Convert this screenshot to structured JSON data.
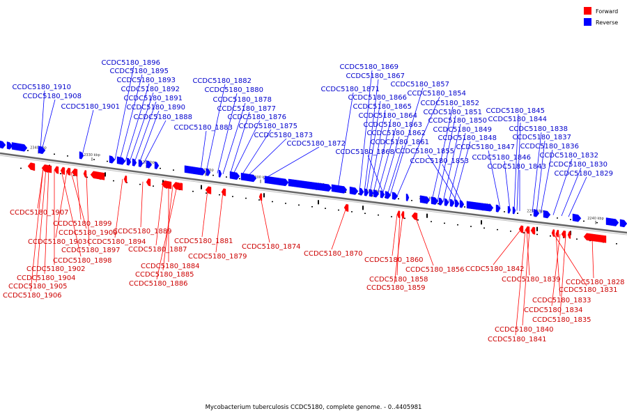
{
  "caption": "Mycobacterium tuberculosis CCDC5180, complete genome. - 0..4405981",
  "legend": [
    {
      "label": "Forward",
      "color": "#ff0000"
    },
    {
      "label": "Reverse",
      "color": "#0000ff"
    }
  ],
  "colors": {
    "forward": "#ff0000",
    "reverse": "#0000ff",
    "forward_label": "#cc0000",
    "reverse_label": "#0000cc",
    "backbone": "#666666"
  },
  "ticks": [
    "2340 kbp",
    "2330 kbp",
    "2320 kbp",
    "2310 kbp",
    "2300 kbp",
    "2290 kbp",
    "2280 kbp",
    "2270 kbp",
    "2260 kbp",
    "2250 kbp",
    "2240 kbp"
  ],
  "reverse_labels": [
    "CCDC5180_1910",
    "CCDC5180_1908",
    "CCDC5180_1901",
    "CCDC5180_1896",
    "CCDC5180_1895",
    "CCDC5180_1893",
    "CCDC5180_1892",
    "CCDC5180_1891",
    "CCDC5180_1890",
    "CCDC5180_1888",
    "CCDC5180_1883",
    "CCDC5180_1882",
    "CCDC5180_1880",
    "CCDC5180_1878",
    "CCDC5180_1877",
    "CCDC5180_1876",
    "CCDC5180_1875",
    "CCDC5180_1873",
    "CCDC5180_1872",
    "CCDC5180_1871",
    "CCDC5180_1869",
    "CCDC5180_1867",
    "CCDC5180_1866",
    "CCDC5180_1865",
    "CCDC5180_1864",
    "CCDC5180_1863",
    "CCDC5180_1862",
    "CCDC5180_1861",
    "CCDC5180_1868",
    "CCDC5180_1857",
    "CCDC5180_1854",
    "CCDC5180_1852",
    "CCDC5180_1851",
    "CCDC5180_1850",
    "CCDC5180_1849",
    "CCDC5180_1848",
    "CCDC5180_1855",
    "CCDC5180_1853",
    "CCDC5180_1847",
    "CCDC5180_1846",
    "CCDC5180_1845",
    "CCDC5180_1844",
    "CCDC5180_1843",
    "CCDC5180_1838",
    "CCDC5180_1837",
    "CCDC5180_1836",
    "CCDC5180_1832",
    "CCDC5180_1830",
    "CCDC5180_1829"
  ],
  "forward_labels": [
    "CCDC5180_1907",
    "CCDC5180_1899",
    "CCDC5180_1900",
    "CCDC5180_1903",
    "CCDC5180_1894",
    "CCDC5180_1897",
    "CCDC5180_1898",
    "CCDC5180_1902",
    "CCDC5180_1904",
    "CCDC5180_1905",
    "CCDC5180_1906",
    "CCDC5180_1889",
    "CCDC5180_1887",
    "CCDC5180_1884",
    "CCDC5180_1885",
    "CCDC5180_1886",
    "CCDC5180_1881",
    "CCDC5180_1879",
    "CCDC5180_1874",
    "CCDC5180_1870",
    "CCDC5180_1860",
    "CCDC5180_1858",
    "CCDC5180_1859",
    "CCDC5180_1856",
    "CCDC5180_1842",
    "CCDC5180_1839",
    "CCDC5180_1831",
    "CCDC5180_1833",
    "CCDC5180_1834",
    "CCDC5180_1835",
    "CCDC5180_1840",
    "CCDC5180_1841",
    "CCDC5180_1828"
  ]
}
